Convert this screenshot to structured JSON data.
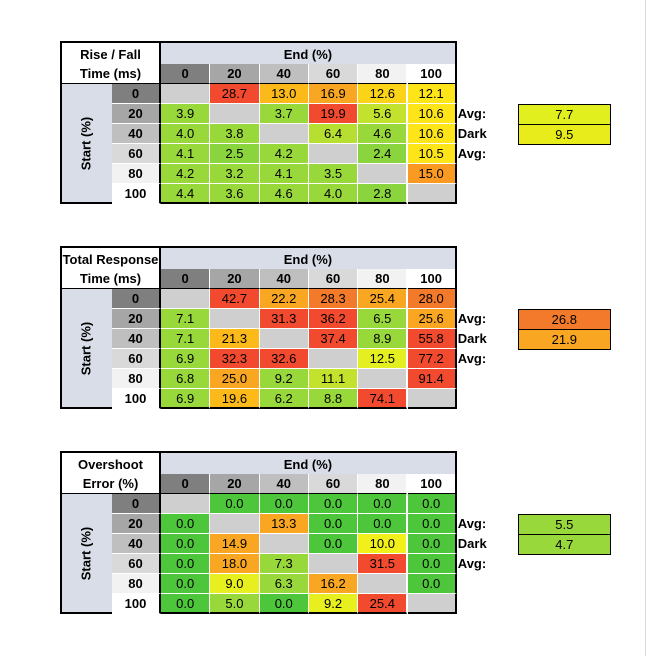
{
  "tables": [
    {
      "title_line1": "Rise / Fall",
      "title_line2": "Time (ms)",
      "end_label": "End (%)",
      "start_label": "Start (%)",
      "columns": [
        "0",
        "20",
        "40",
        "60",
        "80",
        "100"
      ],
      "rows": [
        "0",
        "20",
        "40",
        "60",
        "80",
        "100"
      ],
      "cells": [
        [
          "",
          "28.7",
          "13.0",
          "16.9",
          "12.6",
          "12.1"
        ],
        [
          "3.9",
          "",
          "3.7",
          "19.9",
          "5.6",
          "10.6"
        ],
        [
          "4.0",
          "3.8",
          "",
          "6.4",
          "4.6",
          "10.6"
        ],
        [
          "4.1",
          "2.5",
          "4.2",
          "",
          "2.4",
          "10.5"
        ],
        [
          "4.2",
          "3.2",
          "4.1",
          "3.5",
          "",
          "15.0"
        ],
        [
          "4.4",
          "3.6",
          "4.6",
          "4.0",
          "2.8",
          ""
        ]
      ],
      "colors": [
        [
          "#cfcfcf",
          "#f14a2e",
          "#fbb91a",
          "#f9a723",
          "#fbd41a",
          "#fde51a"
        ],
        [
          "#99d83b",
          "#cfcfcf",
          "#99d83b",
          "#f14a2e",
          "#c3e22e",
          "#fde51a"
        ],
        [
          "#99d83b",
          "#99d83b",
          "#cfcfcf",
          "#b7df31",
          "#99d83b",
          "#fde51a"
        ],
        [
          "#99d83b",
          "#8ad53e",
          "#99d83b",
          "#cfcfcf",
          "#8ad53e",
          "#fde51a"
        ],
        [
          "#99d83b",
          "#99d83b",
          "#99d83b",
          "#99d83b",
          "#cfcfcf",
          "#fa9a22"
        ],
        [
          "#99d83b",
          "#99d83b",
          "#99d83b",
          "#99d83b",
          "#8ad53e",
          "#cfcfcf"
        ]
      ],
      "avg_label": "Avg:",
      "avg_value": "7.7",
      "avg_color": "#e2ef1f",
      "dark_avg_label": "Dark Avg:",
      "dark_avg_value": "9.5",
      "dark_avg_color": "#e7ec1a"
    },
    {
      "title_line1": "Total Response",
      "title_line2": "Time (ms)",
      "end_label": "End (%)",
      "start_label": "Start (%)",
      "columns": [
        "0",
        "20",
        "40",
        "60",
        "80",
        "100"
      ],
      "rows": [
        "0",
        "20",
        "40",
        "60",
        "80",
        "100"
      ],
      "cells": [
        [
          "",
          "42.7",
          "22.2",
          "28.3",
          "25.4",
          "28.0"
        ],
        [
          "7.1",
          "",
          "31.3",
          "36.2",
          "6.5",
          "25.6"
        ],
        [
          "7.1",
          "21.3",
          "",
          "37.4",
          "8.9",
          "55.8"
        ],
        [
          "6.9",
          "32.3",
          "32.6",
          "",
          "12.5",
          "77.2"
        ],
        [
          "6.8",
          "25.0",
          "9.2",
          "11.1",
          "",
          "91.4"
        ],
        [
          "6.9",
          "19.6",
          "6.2",
          "8.8",
          "74.1",
          ""
        ]
      ],
      "colors": [
        [
          "#cfcfcf",
          "#f14a2e",
          "#f9a723",
          "#f27a2a",
          "#f9a723",
          "#f27a2a"
        ],
        [
          "#99d83b",
          "#cfcfcf",
          "#f14a2e",
          "#f14a2e",
          "#99d83b",
          "#f9a723"
        ],
        [
          "#99d83b",
          "#fbb91a",
          "#cfcfcf",
          "#f14a2e",
          "#99d83b",
          "#f14a2e"
        ],
        [
          "#99d83b",
          "#f14a2e",
          "#f14a2e",
          "#cfcfcf",
          "#e4ef21",
          "#f14a2e"
        ],
        [
          "#99d83b",
          "#f9a723",
          "#99d83b",
          "#c3e22e",
          "#cfcfcf",
          "#f14a2e"
        ],
        [
          "#99d83b",
          "#fbb91a",
          "#99d83b",
          "#99d83b",
          "#f14a2e",
          "#cfcfcf"
        ]
      ],
      "avg_label": "Avg:",
      "avg_value": "26.8",
      "avg_color": "#f27a2a",
      "dark_avg_label": "Dark Avg:",
      "dark_avg_value": "21.9",
      "dark_avg_color": "#f9a723"
    },
    {
      "title_line1": "Overshoot",
      "title_line2": "Error (%)",
      "end_label": "End (%)",
      "start_label": "Start (%)",
      "columns": [
        "0",
        "20",
        "40",
        "60",
        "80",
        "100"
      ],
      "rows": [
        "0",
        "20",
        "40",
        "60",
        "80",
        "100"
      ],
      "cells": [
        [
          "",
          "0.0",
          "0.0",
          "0.0",
          "0.0",
          "0.0"
        ],
        [
          "0.0",
          "",
          "13.3",
          "0.0",
          "0.0",
          "0.0"
        ],
        [
          "0.0",
          "14.9",
          "",
          "0.0",
          "10.0",
          "0.0"
        ],
        [
          "0.0",
          "18.0",
          "7.3",
          "",
          "31.5",
          "0.0"
        ],
        [
          "0.0",
          "9.0",
          "6.3",
          "16.2",
          "",
          "0.0"
        ],
        [
          "0.0",
          "5.0",
          "0.0",
          "9.2",
          "25.4",
          ""
        ]
      ],
      "colors": [
        [
          "#cfcfcf",
          "#4ec63b",
          "#4ec63b",
          "#4ec63b",
          "#4ec63b",
          "#4ec63b"
        ],
        [
          "#4ec63b",
          "#cfcfcf",
          "#f9a723",
          "#4ec63b",
          "#4ec63b",
          "#4ec63b"
        ],
        [
          "#4ec63b",
          "#f9a723",
          "#cfcfcf",
          "#4ec63b",
          "#f1f01a",
          "#4ec63b"
        ],
        [
          "#4ec63b",
          "#f9a723",
          "#99d83b",
          "#cfcfcf",
          "#f14a2e",
          "#4ec63b"
        ],
        [
          "#4ec63b",
          "#e8ef1f",
          "#99d83b",
          "#f9a723",
          "#cfcfcf",
          "#4ec63b"
        ],
        [
          "#4ec63b",
          "#99d83b",
          "#4ec63b",
          "#e8ef1f",
          "#f14a2e",
          "#cfcfcf"
        ]
      ],
      "avg_label": "Avg:",
      "avg_value": "5.5",
      "avg_color": "#99d83b",
      "dark_avg_label": "Dark Avg:",
      "dark_avg_value": "4.7",
      "dark_avg_color": "#99d83b"
    }
  ]
}
